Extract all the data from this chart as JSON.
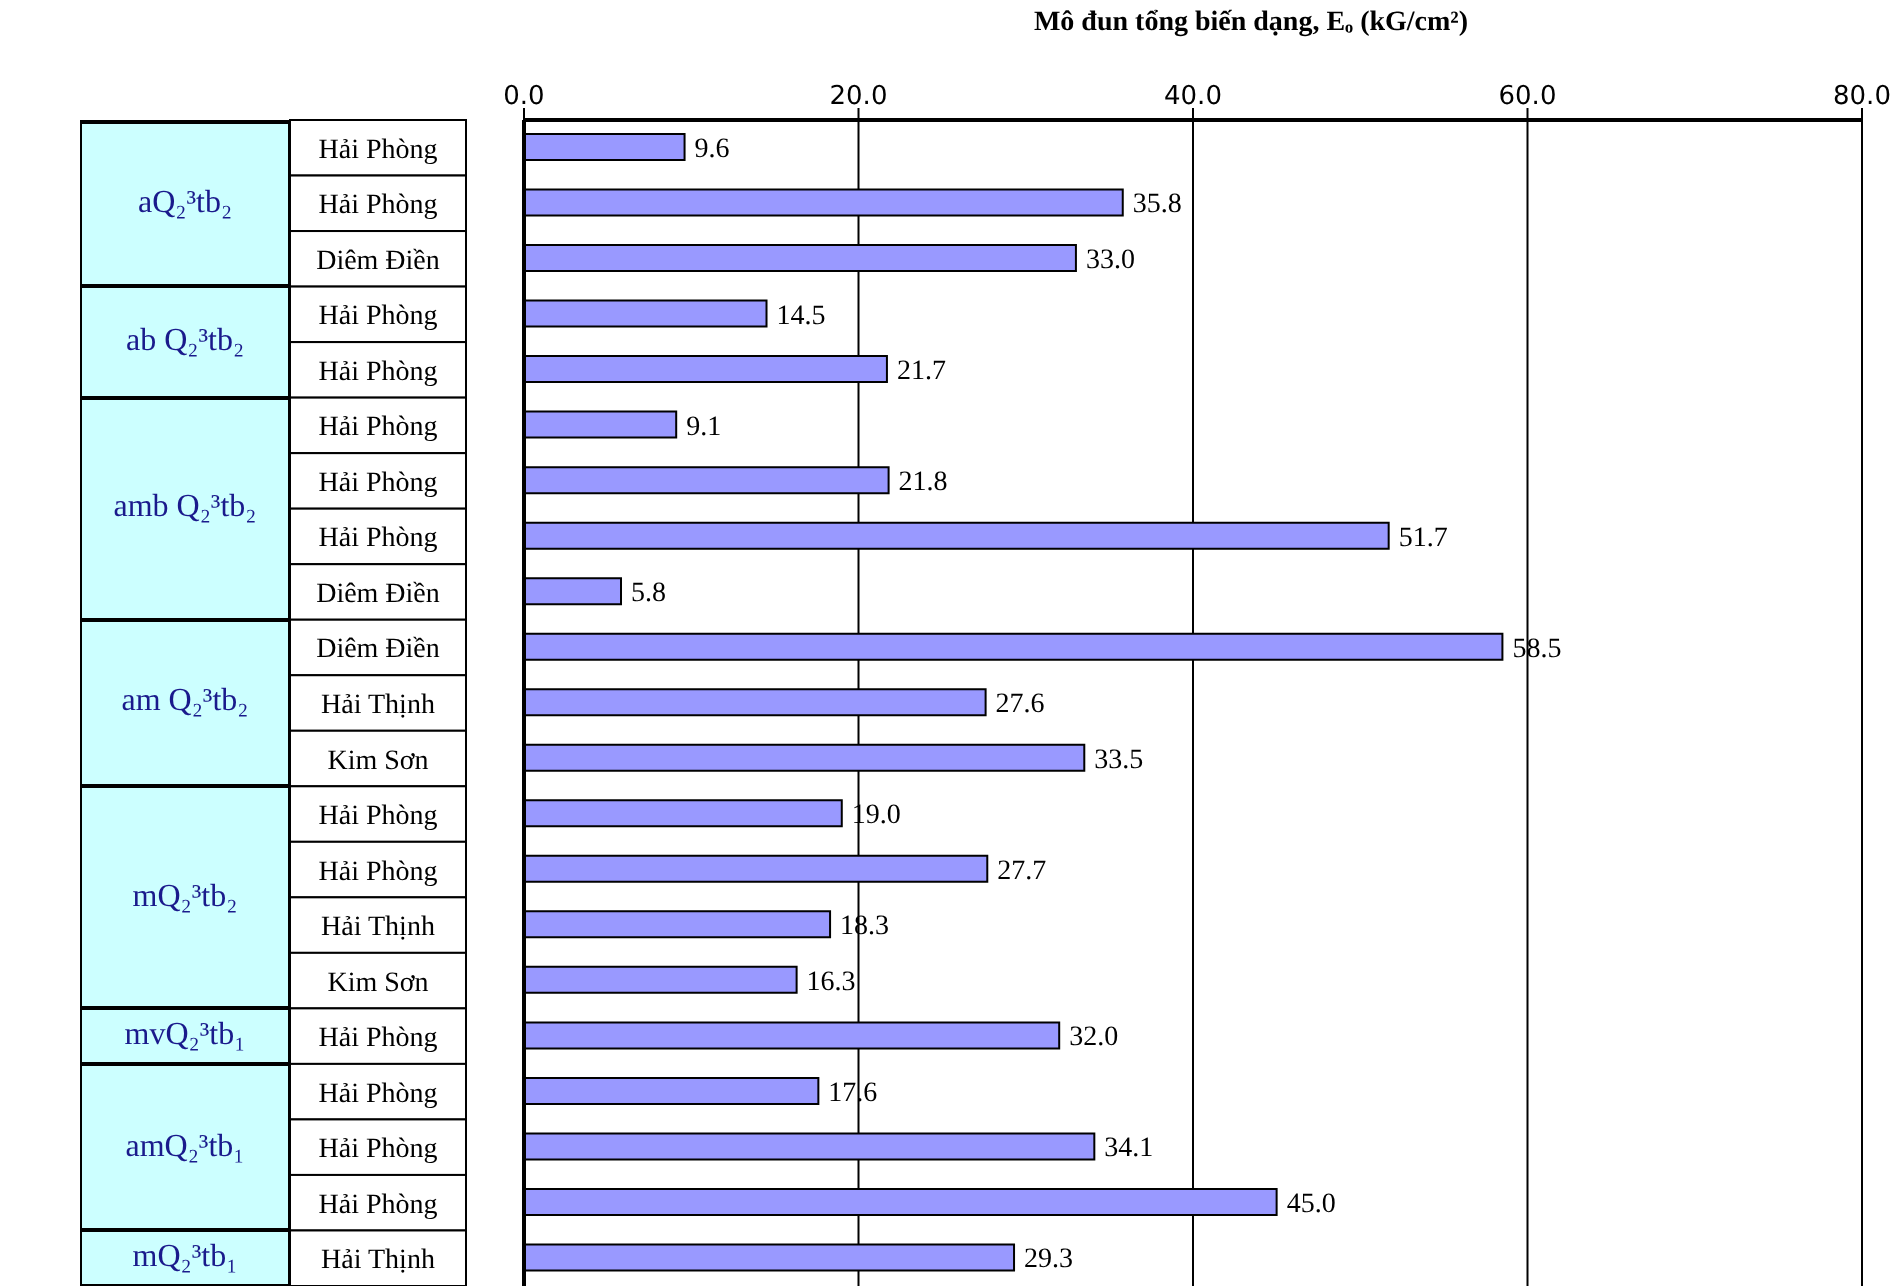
{
  "chart_data": {
    "type": "bar",
    "orientation": "horizontal",
    "xlabel": "Mô đun tổng biến dạng, Eₒ (kG/cm²)",
    "categories": [
      "Hải Phòng",
      "Hải Phòng",
      "Diêm Điền",
      "Hải Phòng",
      "Hải Phòng",
      "Hải Phòng",
      "Hải Phòng",
      "Hải Phòng",
      "Diêm Điền",
      "Diêm Điền",
      "Hải Thịnh",
      "Kim Sơn",
      "Hải Phòng",
      "Hải Phòng",
      "Hải Thịnh",
      "Kim Sơn",
      "Hải Phòng",
      "Hải Phòng",
      "Hải Phòng",
      "Hải Phòng",
      "Hải Thịnh"
    ],
    "values": [
      9.6,
      35.8,
      33.0,
      14.5,
      21.7,
      9.1,
      21.8,
      51.7,
      5.8,
      58.5,
      27.6,
      33.5,
      19.0,
      27.7,
      18.3,
      16.3,
      32.0,
      17.6,
      34.1,
      45.0,
      29.3
    ],
    "value_labels": [
      "9.6",
      "35.8",
      "33.0",
      "14.5",
      "21.7",
      "9.1",
      "21.8",
      "51.7",
      "5.8",
      "58.5",
      "27.6",
      "33.5",
      "19.0",
      "27.7",
      "18.3",
      "16.3",
      "32.0",
      "17.6",
      "34.1",
      "45.0",
      "29.3"
    ],
    "color": "#9999ff",
    "xlim": [
      0,
      80
    ],
    "xticks": [
      {
        "value": 0,
        "label": "0.0"
      },
      {
        "value": 20,
        "label": "20.0"
      },
      {
        "value": 40,
        "label": "40.0"
      },
      {
        "value": 60,
        "label": "60.0"
      },
      {
        "value": 80,
        "label": "80.0"
      }
    ],
    "grid": "x",
    "annotations": [
      "aQ₂³tb₂",
      "ab Q₂³tb₂",
      "amb Q₂³tb₂",
      "am Q₂³tb₂",
      "mQ₂³tb₂",
      "mvQ₂³tb₁",
      "amQ₂³tb₁",
      "mQ₂³tb₁"
    ]
  }
}
